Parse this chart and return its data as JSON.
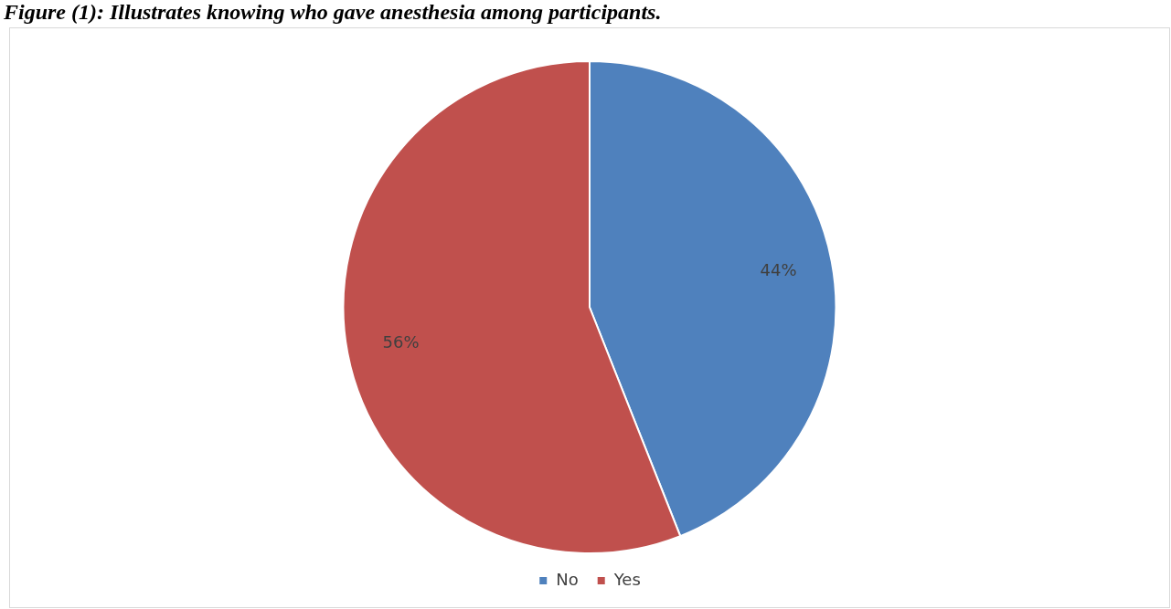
{
  "chart_data": {
    "type": "pie",
    "title": "Figure (1): Illustrates knowing who gave anesthesia among participants.",
    "categories": [
      "No",
      "Yes"
    ],
    "values": [
      44,
      56
    ],
    "colors": [
      "#4f81bd",
      "#c0504d"
    ],
    "value_labels": [
      "44%",
      "56%"
    ],
    "legend": "bottom"
  }
}
